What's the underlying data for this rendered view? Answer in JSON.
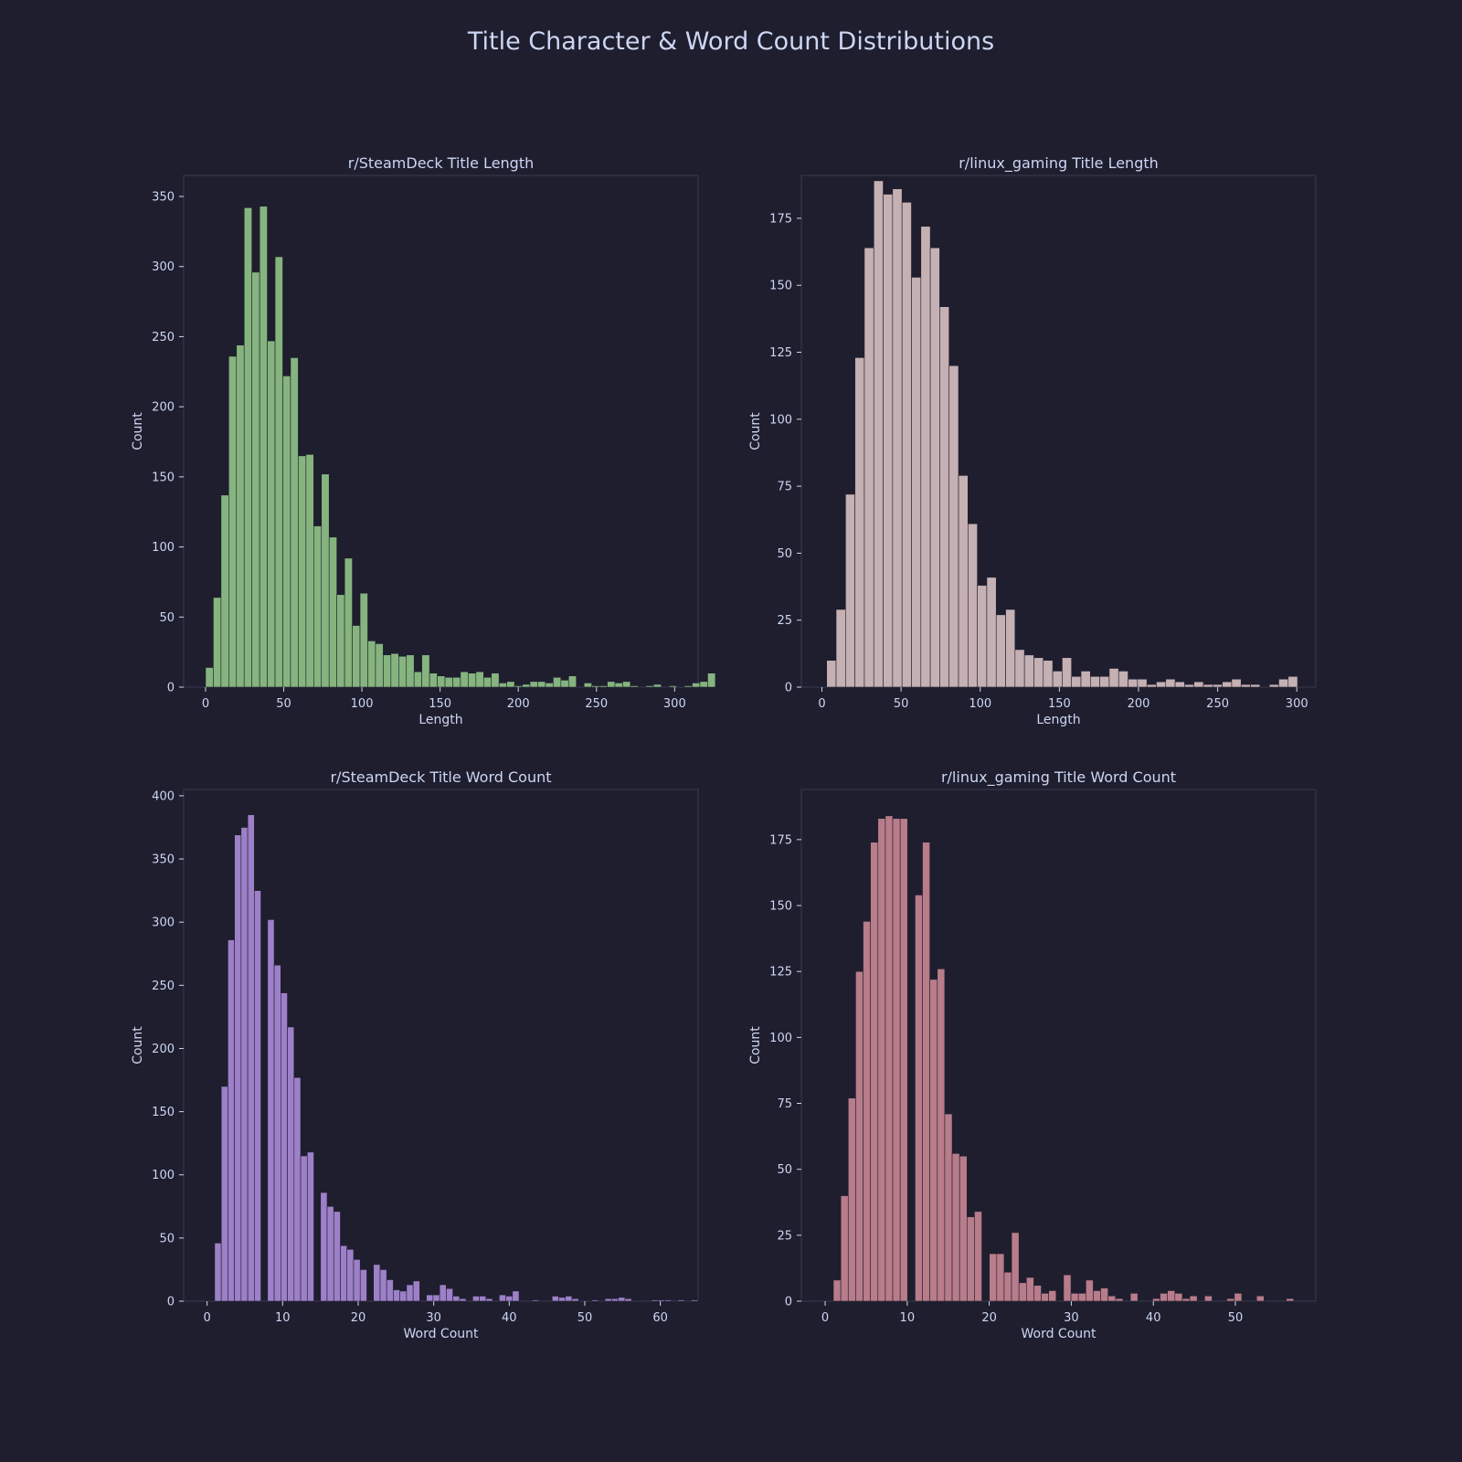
{
  "figure": {
    "title": "Title Character & Word Count Distributions",
    "background": "#1e1e2e",
    "text_color": "#cdd6f4"
  },
  "chart_data": [
    {
      "type": "bar",
      "title": "r/SteamDeck Title Length",
      "xlabel": "Length",
      "ylabel": "Count",
      "color": "#86b47f",
      "xlim": [
        -14,
        315
      ],
      "ylim": [
        0,
        365
      ],
      "xticks": [
        0,
        50,
        100,
        150,
        200,
        250,
        300
      ],
      "yticks": [
        0,
        50,
        100,
        150,
        200,
        250,
        300,
        350
      ],
      "bin_start": 0,
      "bin_width": 4.94,
      "values": [
        14,
        64,
        137,
        236,
        244,
        342,
        296,
        343,
        247,
        307,
        222,
        235,
        165,
        166,
        115,
        152,
        107,
        66,
        92,
        44,
        67,
        33,
        31,
        23,
        24,
        22,
        23,
        11,
        23,
        10,
        8,
        7,
        7,
        11,
        10,
        11,
        7,
        10,
        3,
        4,
        1,
        2,
        4,
        4,
        3,
        7,
        5,
        8,
        0,
        3,
        1,
        1,
        4,
        3,
        4,
        1,
        0,
        1,
        2,
        0,
        1,
        0,
        1,
        3,
        4,
        10
      ]
    },
    {
      "type": "bar",
      "title": "r/linux_gaming Title Length",
      "xlabel": "Length",
      "ylabel": "Count",
      "color": "#c5b0b3",
      "xlim": [
        -13,
        312
      ],
      "ylim": [
        0,
        191
      ],
      "xticks": [
        0,
        50,
        100,
        150,
        200,
        250,
        300
      ],
      "yticks": [
        0,
        25,
        50,
        75,
        100,
        125,
        150,
        175
      ],
      "bin_start": 3,
      "bin_width": 5.95,
      "values": [
        10,
        29,
        72,
        123,
        164,
        189,
        184,
        186,
        181,
        153,
        172,
        164,
        142,
        120,
        79,
        61,
        38,
        41,
        27,
        29,
        14,
        12,
        11,
        10,
        6,
        11,
        4,
        6,
        4,
        4,
        7,
        6,
        3,
        3,
        1,
        2,
        3,
        2,
        1,
        2,
        1,
        1,
        2,
        3,
        1,
        1,
        0,
        1,
        3,
        4
      ]
    },
    {
      "type": "bar",
      "title": "r/SteamDeck Title Word Count",
      "xlabel": "Word Count",
      "ylabel": "Count",
      "color": "#9d80c8",
      "xlim": [
        -3.1,
        65
      ],
      "ylim": [
        0,
        405
      ],
      "xticks": [
        0,
        10,
        20,
        30,
        40,
        50,
        60
      ],
      "yticks": [
        0,
        50,
        100,
        150,
        200,
        250,
        300,
        350,
        400
      ],
      "bin_start": 1,
      "bin_width": 0.876,
      "values": [
        46,
        170,
        286,
        369,
        375,
        385,
        325,
        0,
        302,
        266,
        244,
        217,
        177,
        115,
        118,
        0,
        86,
        75,
        71,
        44,
        41,
        33,
        25,
        0,
        29,
        25,
        17,
        9,
        8,
        13,
        16,
        0,
        5,
        5,
        13,
        10,
        4,
        2,
        0,
        4,
        4,
        2,
        0,
        5,
        4,
        8,
        0,
        0,
        1,
        0,
        0,
        4,
        3,
        4,
        2,
        0,
        0,
        1,
        0,
        2,
        2,
        3,
        2,
        0,
        0,
        0,
        1,
        1,
        1,
        0,
        1,
        0,
        1
      ]
    },
    {
      "type": "bar",
      "title": "r/linux_gaming Title Word Count",
      "xlabel": "Word Count",
      "ylabel": "Count",
      "color": "#b87c8a",
      "xlim": [
        -2.9,
        59.8
      ],
      "ylim": [
        0,
        194
      ],
      "xticks": [
        0,
        10,
        20,
        30,
        40,
        50
      ],
      "yticks": [
        0,
        25,
        50,
        75,
        100,
        125,
        150,
        175
      ],
      "bin_start": 1,
      "bin_width": 0.905,
      "values": [
        8,
        40,
        77,
        125,
        144,
        174,
        183,
        184,
        183,
        183,
        0,
        154,
        174,
        122,
        126,
        71,
        56,
        55,
        32,
        34,
        0,
        18,
        18,
        11,
        26,
        7,
        9,
        6,
        3,
        4,
        0,
        10,
        3,
        3,
        8,
        4,
        5,
        2,
        1,
        0,
        3,
        0,
        0,
        1,
        3,
        4,
        3,
        1,
        2,
        0,
        2,
        0,
        0,
        1,
        3,
        0,
        0,
        2,
        0,
        0,
        0,
        1
      ]
    }
  ]
}
